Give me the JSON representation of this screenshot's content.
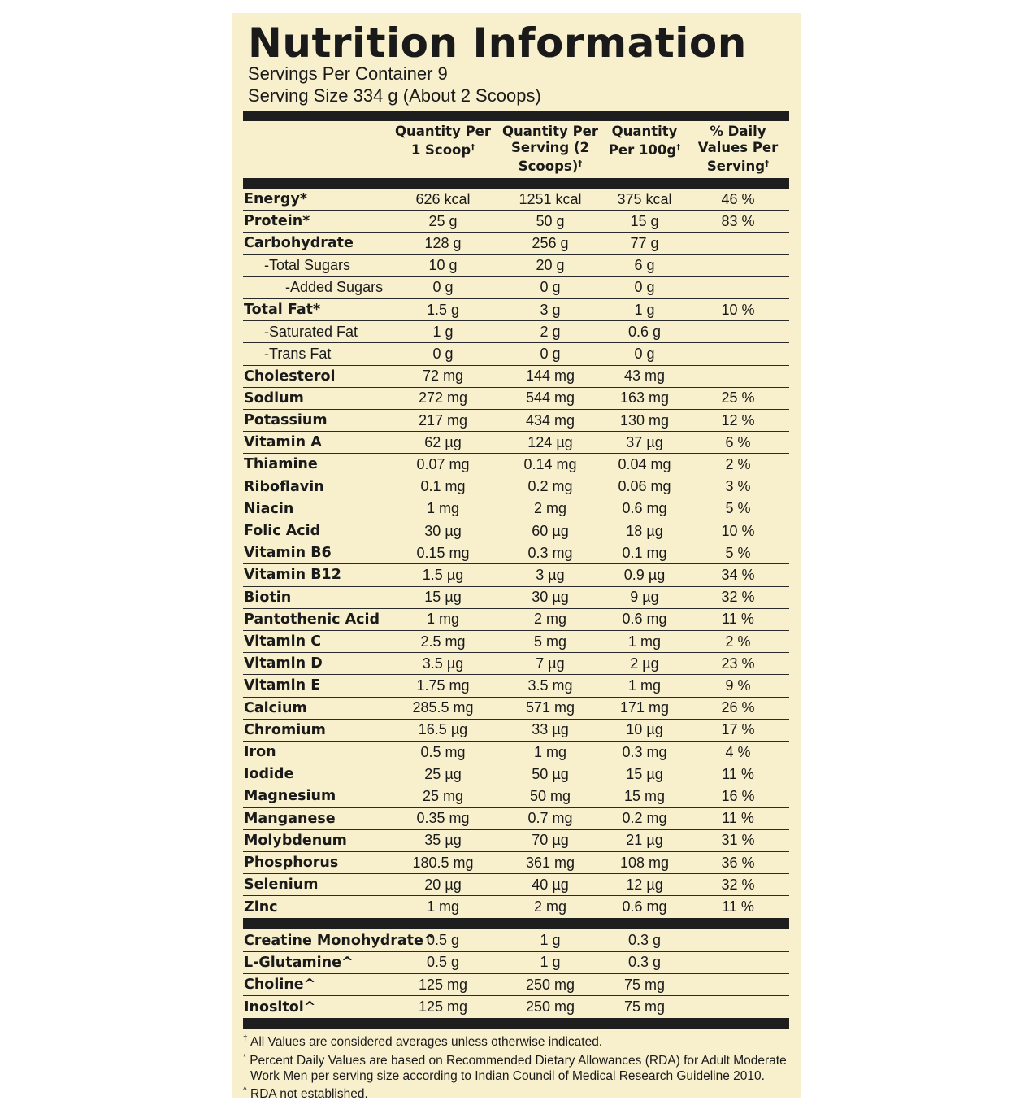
{
  "header": {
    "title": "Nutrition Information",
    "servings": "Servings Per Container 9",
    "serving_size": "Serving Size 334 g (About 2 Scoops)"
  },
  "table": {
    "columns": [
      {
        "label": "Quantity Per 1 Scoop",
        "mark": "†"
      },
      {
        "label": "Quantity Per Serving (2 Scoops)",
        "mark": "†"
      },
      {
        "label": "Quantity Per 100g",
        "mark": "†"
      },
      {
        "label": "% Daily Values Per Serving",
        "mark": "†"
      }
    ],
    "rows": [
      {
        "name": "Energy*",
        "values": [
          "626 kcal",
          "1251 kcal",
          "375 kcal",
          "46 %"
        ]
      },
      {
        "name": "Protein*",
        "values": [
          "25 g",
          "50 g",
          "15 g",
          "83 %"
        ]
      },
      {
        "name": "Carbohydrate",
        "values": [
          "128 g",
          "256 g",
          "77 g"
        ]
      },
      {
        "name": "-Total Sugars",
        "level": 1,
        "values": [
          "10 g",
          "20 g",
          "6 g"
        ]
      },
      {
        "name": "-Added Sugars",
        "level": 2,
        "values": [
          "0 g",
          "0 g",
          "0 g"
        ]
      },
      {
        "name": "Total Fat*",
        "values": [
          "1.5 g",
          "3 g",
          "1 g",
          "10 %"
        ]
      },
      {
        "name": "-Saturated Fat",
        "level": 1,
        "values": [
          "1 g",
          "2 g",
          "0.6 g"
        ]
      },
      {
        "name": "-Trans Fat",
        "level": 1,
        "values": [
          "0 g",
          "0 g",
          "0 g"
        ]
      },
      {
        "name": "Cholesterol",
        "values": [
          "72 mg",
          "144 mg",
          "43 mg"
        ]
      },
      {
        "name": "Sodium",
        "values": [
          "272 mg",
          "544 mg",
          "163 mg",
          "25 %"
        ]
      },
      {
        "name": "Potassium",
        "values": [
          "217 mg",
          "434 mg",
          "130 mg",
          "12 %"
        ]
      },
      {
        "name": "Vitamin A",
        "values": [
          "62 µg",
          "124 µg",
          "37 µg",
          "6 %"
        ]
      },
      {
        "name": "Thiamine",
        "values": [
          "0.07 mg",
          "0.14 mg",
          "0.04 mg",
          "2 %"
        ]
      },
      {
        "name": "Riboflavin",
        "values": [
          "0.1 mg",
          "0.2 mg",
          "0.06 mg",
          "3 %"
        ]
      },
      {
        "name": "Niacin",
        "values": [
          "1 mg",
          "2 mg",
          "0.6 mg",
          "5 %"
        ]
      },
      {
        "name": "Folic Acid",
        "values": [
          "30 µg",
          "60 µg",
          "18 µg",
          "10 %"
        ]
      },
      {
        "name": "Vitamin B6",
        "values": [
          "0.15 mg",
          "0.3 mg",
          "0.1 mg",
          "5 %"
        ]
      },
      {
        "name": "Vitamin B12",
        "values": [
          "1.5 µg",
          "3 µg",
          "0.9 µg",
          "34 %"
        ]
      },
      {
        "name": "Biotin",
        "values": [
          "15 µg",
          "30 µg",
          "9 µg",
          "32 %"
        ]
      },
      {
        "name": "Pantothenic Acid",
        "values": [
          "1 mg",
          "2 mg",
          "0.6 mg",
          "11 %"
        ]
      },
      {
        "name": "Vitamin C",
        "values": [
          "2.5 mg",
          "5 mg",
          "1 mg",
          "2 %"
        ]
      },
      {
        "name": "Vitamin D",
        "values": [
          "3.5 µg",
          "7 µg",
          "2 µg",
          "23 %"
        ]
      },
      {
        "name": "Vitamin E",
        "values": [
          "1.75 mg",
          "3.5 mg",
          "1 mg",
          "9 %"
        ]
      },
      {
        "name": "Calcium",
        "values": [
          "285.5 mg",
          "571 mg",
          "171 mg",
          "26 %"
        ]
      },
      {
        "name": "Chromium",
        "values": [
          "16.5 µg",
          "33 µg",
          "10 µg",
          "17 %"
        ]
      },
      {
        "name": "Iron",
        "values": [
          "0.5 mg",
          "1 mg",
          "0.3 mg",
          "4 %"
        ]
      },
      {
        "name": "Iodide",
        "values": [
          "25 µg",
          "50 µg",
          "15 µg",
          "11 %"
        ]
      },
      {
        "name": "Magnesium",
        "values": [
          "25 mg",
          "50 mg",
          "15 mg",
          "16 %"
        ]
      },
      {
        "name": "Manganese",
        "values": [
          "0.35 mg",
          "0.7 mg",
          "0.2 mg",
          "11 %"
        ]
      },
      {
        "name": "Molybdenum",
        "values": [
          "35 µg",
          "70 µg",
          "21 µg",
          "31 %"
        ]
      },
      {
        "name": "Phosphorus",
        "values": [
          "180.5 mg",
          "361 mg",
          "108 mg",
          "36 %"
        ]
      },
      {
        "name": "Selenium",
        "values": [
          "20 µg",
          "40 µg",
          "12 µg",
          "32 %"
        ]
      },
      {
        "name": "Zinc",
        "values": [
          "1 mg",
          "2 mg",
          "0.6 mg",
          "11 %"
        ]
      }
    ]
  },
  "extra": {
    "rows": [
      {
        "name": "Creatine Monohydrate^",
        "values": [
          "0.5 g",
          "1 g",
          "0.3 g"
        ]
      },
      {
        "name": "L-Glutamine^",
        "values": [
          "0.5 g",
          "1 g",
          "0.3 g"
        ]
      },
      {
        "name": "Choline^",
        "values": [
          "125 mg",
          "250 mg",
          "75 mg"
        ]
      },
      {
        "name": "Inositol^",
        "values": [
          "125 mg",
          "250 mg",
          "75 mg"
        ]
      }
    ]
  },
  "footnotes": [
    {
      "mark": "†",
      "text": "All Values are considered averages unless otherwise indicated."
    },
    {
      "mark": "*",
      "text": "Percent Daily Values are based on Recommended Dietary Allowances (RDA) for Adult Moderate Work Men per serving size according to Indian Council of Medical Research Guideline 2010."
    },
    {
      "mark": "^",
      "text": "RDA not established."
    }
  ]
}
